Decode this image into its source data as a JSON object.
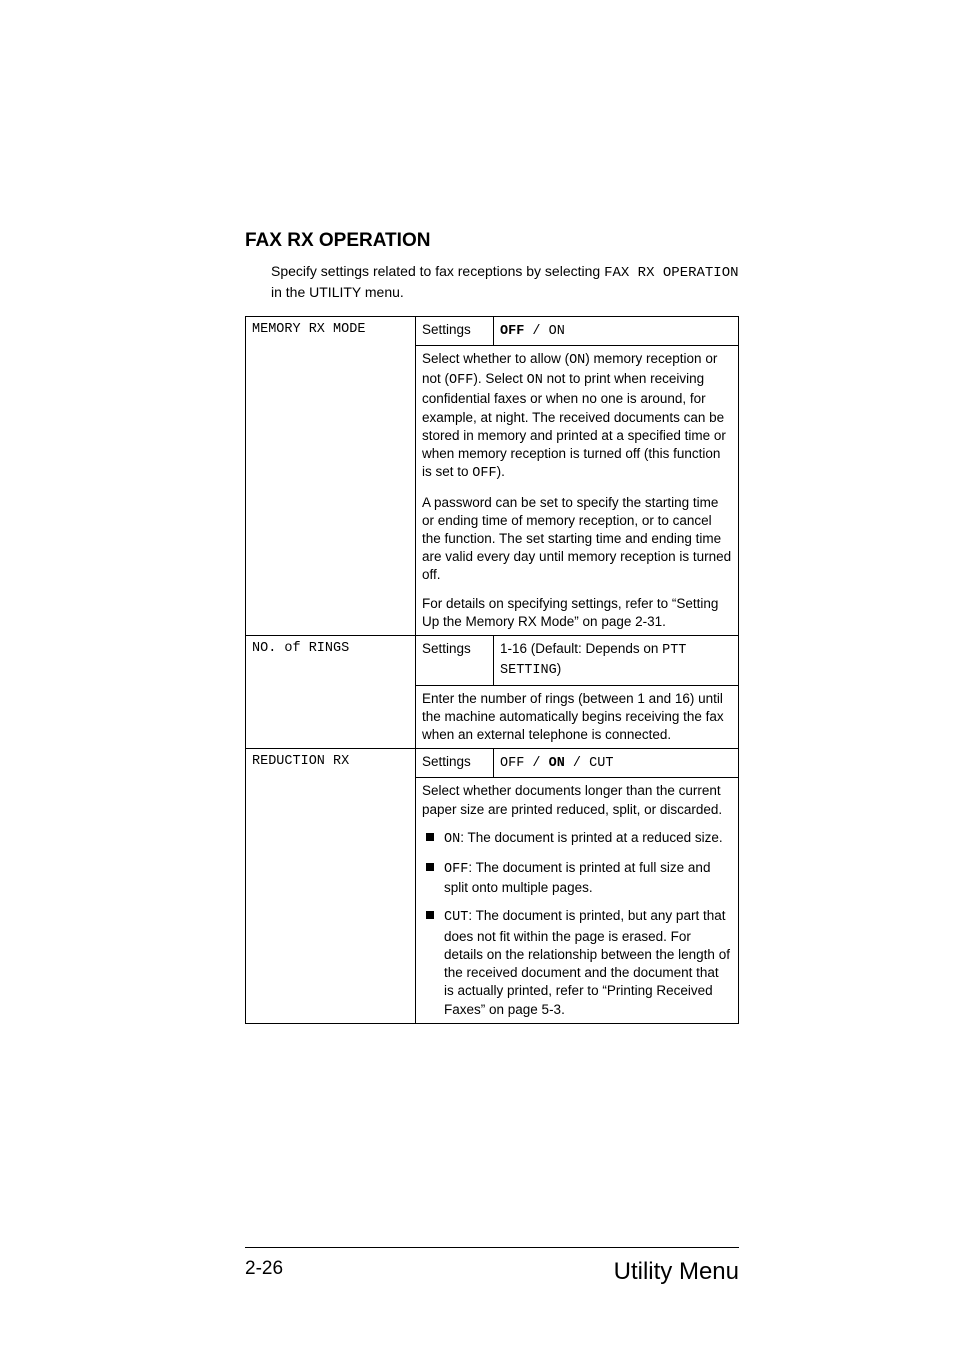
{
  "page": {
    "heading": "FAX RX OPERATION",
    "intro_lead": "Specify settings related to fax receptions by selecting ",
    "intro_code": "FAX RX OPERATION",
    "intro_tail": " in the UTILITY menu.",
    "page_number": "2-26",
    "footer_title": "Utility Menu"
  },
  "labels": {
    "settings": "Settings"
  },
  "rows": {
    "memory": {
      "name": "MEMORY RX MODE",
      "opt_off": "OFF",
      "sep1": " / ",
      "opt_on": "ON",
      "p1a": "Select whether to allow (",
      "p1_on": "ON",
      "p1b": ") memory reception or not (",
      "p1_off": "OFF",
      "p1c": "). Select ",
      "p1_on2": "ON",
      "p1d": " not to print when receiving confidential faxes or when no one is around, for example, at night. The received documents can be stored in memory and printed at a specified time or when memory reception is turned off (this function is set to ",
      "p1_off2": "OFF",
      "p1e": ").",
      "p2": "A password can be set to specify the starting time or ending time of memory reception, or to cancel the function. The set starting time and ending time are valid every day until memory reception is turned off.",
      "p3": "For details on specifying settings, refer to “Setting Up the Memory RX Mode” on page 2-31."
    },
    "rings": {
      "name": "NO. of RINGS",
      "opt_a": "1-16 (Default: Depends on ",
      "opt_code": "PTT SETTING",
      "opt_b": ")",
      "desc": "Enter the number of rings (between 1 and 16) until the machine automatically begins receiving the fax when an external telephone is connected."
    },
    "reduction": {
      "name": "REDUCTION RX",
      "opt_off": "OFF",
      "sep": " / ",
      "opt_on": "ON",
      "opt_cut": "CUT",
      "desc": "Select whether documents longer than the current paper size are printed reduced, split, or discarded.",
      "b1_code": "ON",
      "b1_text": ": The document is printed at a reduced size.",
      "b2_code": "OFF",
      "b2_text": ": The document is printed at full size and split onto multiple pages.",
      "b3_code": "CUT",
      "b3_text": ": The document is printed, but any part that does not fit within the page is erased. For details on the relationship between the length of the received document and the document that is actually printed, refer to “Printing Received Faxes” on page 5-3."
    }
  }
}
